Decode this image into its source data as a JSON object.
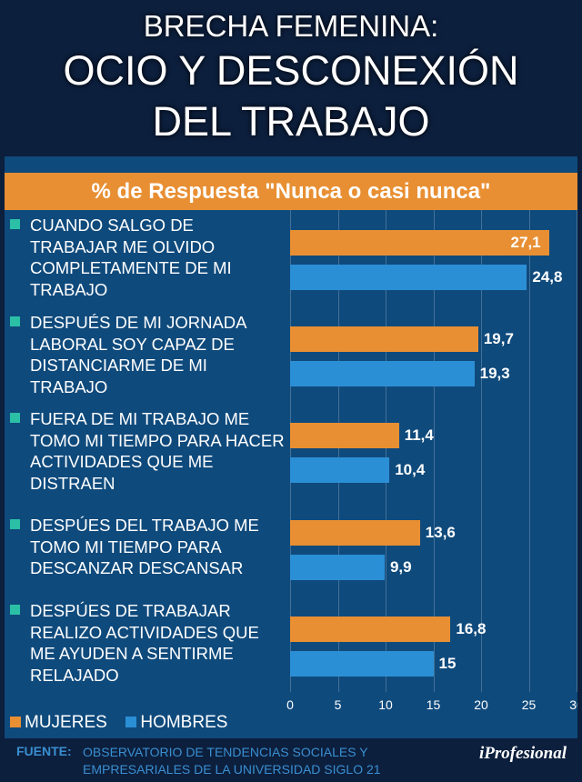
{
  "header": {
    "line1": "BRECHA FEMENINA:",
    "line2": "OCIO Y DESCONEXIÓN",
    "line3": "DEL TRABAJO"
  },
  "banner": "% de Respuesta \"Nunca o casi nunca\"",
  "chart_data": {
    "type": "bar",
    "orientation": "horizontal",
    "categories": [
      "CUANDO SALGO DE TRABAJAR ME OLVIDO COMPLETAMENTE DE MI TRABAJO",
      "DESPUÉS DE MI JORNADA LABORAL SOY CAPAZ DE DISTANCIARME DE MI TRABAJO",
      "FUERA DE MI TRABAJO ME TOMO MI TIEMPO PARA HACER ACTIVIDADES QUE ME DISTRAEN",
      "DESPÚES DEL TRABAJO ME TOMO MI TIEMPO PARA DESCANZAR DESCANSAR",
      "DESPÚES DE TRABAJAR REALIZO ACTIVIDADES QUE ME AYUDEN A SENTIRME RELAJADO"
    ],
    "series": [
      {
        "name": "MUJERES",
        "color": "#e88f33",
        "values": [
          27.1,
          19.7,
          11.4,
          13.6,
          16.8
        ],
        "labels": [
          "27,1",
          "19,7",
          "11,4",
          "13,6",
          "16,8"
        ]
      },
      {
        "name": "HOMBRES",
        "color": "#2b8fd6",
        "values": [
          24.8,
          19.3,
          10.4,
          9.9,
          15
        ],
        "labels": [
          "24,8",
          "19,3",
          "10,4",
          "9,9",
          "15"
        ]
      }
    ],
    "xlim": [
      0,
      30
    ],
    "xticks": [
      "0",
      "5",
      "10",
      "15",
      "20",
      "25",
      "30"
    ],
    "grid": true,
    "legend": "bottom-left"
  },
  "footer": {
    "label": "FUENTE:",
    "source": "OBSERVATORIO DE TENDENCIAS SOCIALES Y EMPRESARIALES DE LA UNIVERSIDAD SIGLO 21",
    "logo": "iProfesional"
  }
}
